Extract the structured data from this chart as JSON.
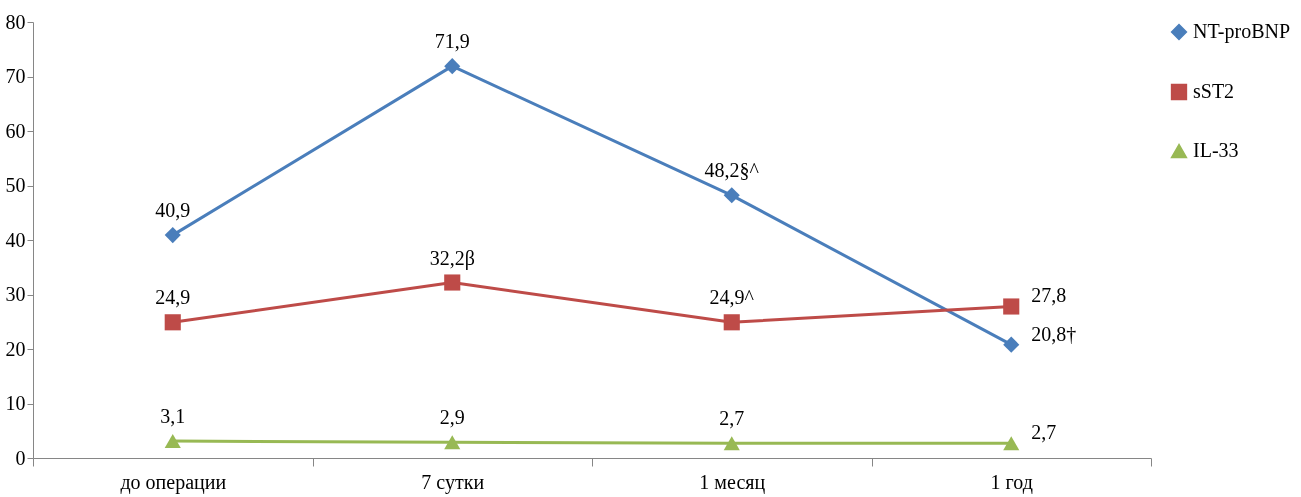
{
  "chart_data": {
    "type": "line",
    "categories": [
      "до операции",
      "7 сутки",
      "1 месяц",
      "1 год"
    ],
    "series": [
      {
        "name": "NT-proBNP",
        "color": "#4a7ebb",
        "marker": "diamond",
        "values": [
          40.9,
          71.9,
          48.2,
          20.8
        ],
        "value_labels": [
          "40,9",
          "71,9",
          "48,2§^",
          "20,8†"
        ]
      },
      {
        "name": "sST2",
        "color": "#be4b48",
        "marker": "square",
        "values": [
          24.9,
          32.2,
          24.9,
          27.8
        ],
        "value_labels": [
          "24,9",
          "32,2β",
          "24,9^",
          "27,8"
        ]
      },
      {
        "name": "IL-33",
        "color": "#98b954",
        "marker": "triangle",
        "values": [
          3.1,
          2.9,
          2.7,
          2.7
        ],
        "value_labels": [
          "3,1",
          "2,9",
          "2,7",
          "2,7"
        ]
      }
    ],
    "ylim": [
      0,
      80
    ],
    "yticks": [
      0,
      10,
      20,
      30,
      40,
      50,
      60,
      70,
      80
    ],
    "grid": false,
    "legend": "right",
    "line_style": "solid"
  }
}
